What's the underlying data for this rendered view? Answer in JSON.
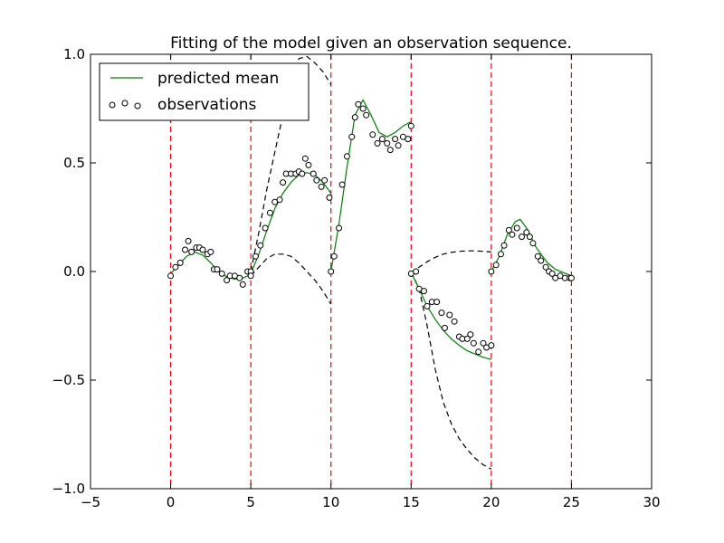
{
  "chart_data": {
    "type": "line",
    "title": "Fitting of the model given an observation sequence.",
    "xlabel": "",
    "ylabel": "",
    "xlim": [
      -5,
      30
    ],
    "ylim": [
      -1.0,
      1.0
    ],
    "xticks": [
      -5,
      0,
      5,
      10,
      15,
      20,
      25,
      30
    ],
    "xtick_labels": [
      "−5",
      "0",
      "5",
      "10",
      "15",
      "20",
      "25",
      "30"
    ],
    "yticks": [
      -1.0,
      -0.5,
      0.0,
      0.5,
      1.0
    ],
    "ytick_labels": [
      "−1.0",
      "−0.5",
      "0.0",
      "0.5",
      "1.0"
    ],
    "grid": false,
    "legend_position": "top-left",
    "colors": {
      "predicted_mean": "#008000",
      "observations": "#000000",
      "boundary": "#ff0000",
      "uncertainty": "#000000"
    },
    "segment_boundaries": [
      0,
      5,
      10,
      15,
      20,
      25
    ],
    "series": [
      {
        "name": "predicted mean",
        "style": "line",
        "segments": [
          [
            [
              0,
              -0.01
            ],
            [
              0.5,
              0.03
            ],
            [
              1,
              0.07
            ],
            [
              1.5,
              0.09
            ],
            [
              2,
              0.075
            ],
            [
              2.5,
              0.04
            ],
            [
              3,
              0.0
            ],
            [
              3.5,
              -0.025
            ],
            [
              4,
              -0.035
            ],
            [
              4.5,
              -0.03
            ],
            [
              5,
              -0.015
            ]
          ],
          [
            [
              5,
              -0.01
            ],
            [
              5.5,
              0.08
            ],
            [
              6,
              0.19
            ],
            [
              6.5,
              0.29
            ],
            [
              7,
              0.36
            ],
            [
              7.5,
              0.41
            ],
            [
              8,
              0.445
            ],
            [
              8.5,
              0.455
            ],
            [
              9,
              0.445
            ],
            [
              9.5,
              0.41
            ],
            [
              10,
              0.36
            ]
          ],
          [
            [
              10,
              0.0
            ],
            [
              10.5,
              0.22
            ],
            [
              11,
              0.48
            ],
            [
              11.5,
              0.72
            ],
            [
              12,
              0.79
            ],
            [
              12.5,
              0.72
            ],
            [
              13,
              0.64
            ],
            [
              13.5,
              0.62
            ],
            [
              14,
              0.64
            ],
            [
              14.5,
              0.67
            ],
            [
              15,
              0.69
            ]
          ],
          [
            [
              15,
              -0.005
            ],
            [
              15.5,
              -0.08
            ],
            [
              16,
              -0.16
            ],
            [
              16.5,
              -0.22
            ],
            [
              17,
              -0.27
            ],
            [
              17.5,
              -0.31
            ],
            [
              18,
              -0.34
            ],
            [
              18.5,
              -0.365
            ],
            [
              19,
              -0.38
            ],
            [
              19.5,
              -0.395
            ],
            [
              20,
              -0.405
            ]
          ],
          [
            [
              20,
              0.0
            ],
            [
              20.5,
              0.07
            ],
            [
              21,
              0.17
            ],
            [
              21.5,
              0.23
            ],
            [
              21.8,
              0.24
            ],
            [
              22.2,
              0.2
            ],
            [
              22.8,
              0.11
            ],
            [
              23.5,
              0.04
            ],
            [
              24,
              0.01
            ],
            [
              24.5,
              -0.005
            ],
            [
              25,
              -0.02
            ]
          ]
        ]
      },
      {
        "name": "observations",
        "style": "markers",
        "points": [
          [
            0,
            -0.02
          ],
          [
            0.3,
            0.02
          ],
          [
            0.6,
            0.04
          ],
          [
            0.9,
            0.1
          ],
          [
            1.1,
            0.14
          ],
          [
            1.3,
            0.09
          ],
          [
            1.6,
            0.11
          ],
          [
            1.8,
            0.11
          ],
          [
            2.0,
            0.1
          ],
          [
            2.3,
            0.08
          ],
          [
            2.5,
            0.09
          ],
          [
            2.7,
            0.01
          ],
          [
            2.9,
            0.01
          ],
          [
            3.2,
            -0.01
          ],
          [
            3.5,
            -0.04
          ],
          [
            3.7,
            -0.02
          ],
          [
            4.0,
            -0.02
          ],
          [
            4.3,
            -0.03
          ],
          [
            4.5,
            -0.06
          ],
          [
            4.8,
            0.0
          ],
          [
            5.0,
            0.0
          ],
          [
            5.0,
            -0.02
          ],
          [
            5.3,
            0.07
          ],
          [
            5.6,
            0.12
          ],
          [
            5.9,
            0.2
          ],
          [
            6.2,
            0.27
          ],
          [
            6.5,
            0.32
          ],
          [
            6.8,
            0.33
          ],
          [
            7.0,
            0.41
          ],
          [
            7.2,
            0.45
          ],
          [
            7.5,
            0.45
          ],
          [
            7.8,
            0.45
          ],
          [
            8.0,
            0.46
          ],
          [
            8.2,
            0.45
          ],
          [
            8.4,
            0.52
          ],
          [
            8.6,
            0.49
          ],
          [
            8.9,
            0.45
          ],
          [
            9.1,
            0.42
          ],
          [
            9.4,
            0.39
          ],
          [
            9.6,
            0.42
          ],
          [
            9.9,
            0.34
          ],
          [
            10.0,
            0.0
          ],
          [
            10.2,
            0.07
          ],
          [
            10.5,
            0.2
          ],
          [
            10.7,
            0.4
          ],
          [
            11.0,
            0.53
          ],
          [
            11.3,
            0.62
          ],
          [
            11.5,
            0.71
          ],
          [
            11.7,
            0.77
          ],
          [
            12.0,
            0.75
          ],
          [
            12.2,
            0.72
          ],
          [
            12.6,
            0.63
          ],
          [
            12.9,
            0.59
          ],
          [
            13.2,
            0.61
          ],
          [
            13.5,
            0.59
          ],
          [
            13.7,
            0.56
          ],
          [
            14.0,
            0.61
          ],
          [
            14.2,
            0.58
          ],
          [
            14.5,
            0.62
          ],
          [
            14.8,
            0.61
          ],
          [
            15.0,
            0.67
          ],
          [
            15.0,
            -0.01
          ],
          [
            15.3,
            0.0
          ],
          [
            15.5,
            -0.08
          ],
          [
            15.8,
            -0.09
          ],
          [
            16.0,
            -0.16
          ],
          [
            16.3,
            -0.14
          ],
          [
            16.6,
            -0.14
          ],
          [
            16.9,
            -0.19
          ],
          [
            17.1,
            -0.26
          ],
          [
            17.4,
            -0.2
          ],
          [
            17.7,
            -0.23
          ],
          [
            18.0,
            -0.3
          ],
          [
            18.2,
            -0.31
          ],
          [
            18.5,
            -0.31
          ],
          [
            18.7,
            -0.29
          ],
          [
            18.9,
            -0.33
          ],
          [
            19.2,
            -0.37
          ],
          [
            19.5,
            -0.33
          ],
          [
            19.7,
            -0.35
          ],
          [
            20.0,
            -0.34
          ],
          [
            20.0,
            0.0
          ],
          [
            20.3,
            0.03
          ],
          [
            20.6,
            0.08
          ],
          [
            20.8,
            0.12
          ],
          [
            21.1,
            0.19
          ],
          [
            21.3,
            0.17
          ],
          [
            21.6,
            0.2
          ],
          [
            21.9,
            0.16
          ],
          [
            22.2,
            0.18
          ],
          [
            22.4,
            0.16
          ],
          [
            22.6,
            0.13
          ],
          [
            22.9,
            0.07
          ],
          [
            23.1,
            0.05
          ],
          [
            23.4,
            0.02
          ],
          [
            23.6,
            0.0
          ],
          [
            23.8,
            -0.01
          ],
          [
            24.0,
            -0.03
          ],
          [
            24.3,
            -0.02
          ],
          [
            24.6,
            -0.03
          ],
          [
            24.9,
            -0.03
          ],
          [
            25.0,
            -0.03
          ]
        ]
      },
      {
        "name": "",
        "style": "dashed",
        "segments": [
          [
            [
              5,
              0.0
            ],
            [
              5.5,
              0.18
            ],
            [
              6,
              0.38
            ],
            [
              6.5,
              0.55
            ],
            [
              7,
              0.72
            ],
            [
              7.4,
              0.84
            ],
            [
              7.7,
              0.93
            ],
            [
              8.0,
              0.98
            ],
            [
              8.5,
              0.99
            ],
            [
              9.0,
              0.96
            ],
            [
              9.5,
              0.92
            ],
            [
              10,
              0.86
            ]
          ],
          [
            [
              5,
              -0.02
            ],
            [
              5.5,
              0.02
            ],
            [
              6,
              0.06
            ],
            [
              6.5,
              0.08
            ],
            [
              7,
              0.08
            ],
            [
              7.5,
              0.07
            ],
            [
              8,
              0.04
            ],
            [
              8.5,
              0.0
            ],
            [
              9,
              -0.04
            ],
            [
              9.5,
              -0.09
            ],
            [
              10,
              -0.15
            ]
          ],
          [
            [
              15,
              0.0
            ],
            [
              15.5,
              -0.08
            ],
            [
              16,
              -0.25
            ],
            [
              16.5,
              -0.45
            ],
            [
              17,
              -0.6
            ],
            [
              17.5,
              -0.7
            ],
            [
              18,
              -0.77
            ],
            [
              18.5,
              -0.82
            ],
            [
              19,
              -0.86
            ],
            [
              19.5,
              -0.89
            ],
            [
              20,
              -0.91
            ]
          ],
          [
            [
              15,
              -0.01
            ],
            [
              15.5,
              0.02
            ],
            [
              16,
              0.045
            ],
            [
              16.5,
              0.065
            ],
            [
              17,
              0.08
            ],
            [
              17.5,
              0.088
            ],
            [
              18,
              0.093
            ],
            [
              18.5,
              0.095
            ],
            [
              19,
              0.095
            ],
            [
              19.5,
              0.093
            ],
            [
              20,
              0.09
            ]
          ]
        ]
      }
    ],
    "legend": [
      {
        "label": "predicted mean",
        "marker": "line"
      },
      {
        "label": "observations",
        "marker": "circles"
      }
    ]
  }
}
